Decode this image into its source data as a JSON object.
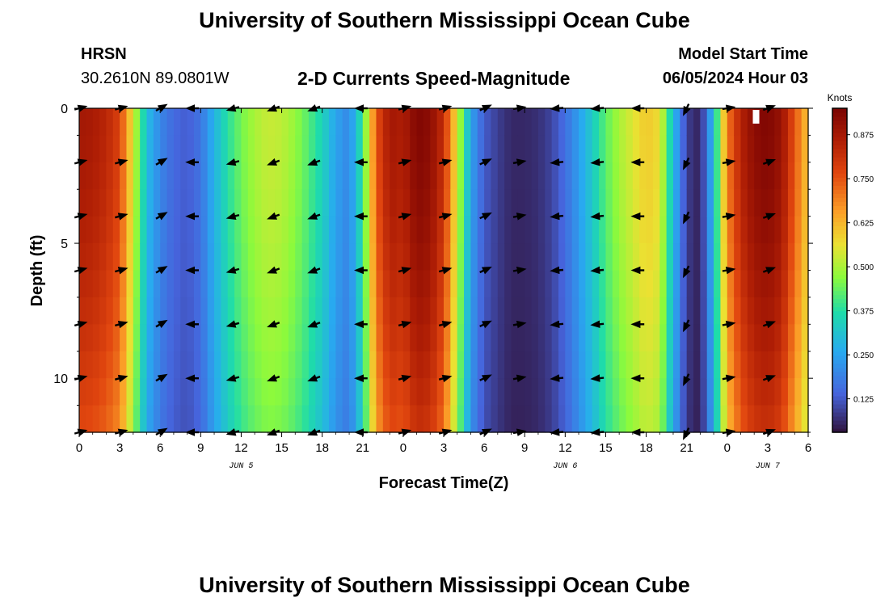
{
  "header": {
    "title": "University of Southern Mississippi Ocean Cube",
    "station": "HRSN",
    "coords": "30.2610N  89.0801W",
    "product": "2-D Currents Speed-Magnitude",
    "model_start_label": "Model Start Time",
    "model_start_value": "06/05/2024 Hour 03"
  },
  "footer": {
    "title": "University of Southern Mississippi Ocean Cube"
  },
  "chart_data": {
    "type": "heatmap",
    "title": "2-D Currents Speed-Magnitude",
    "xlabel": "Forecast Time(Z)",
    "ylabel": "Depth (ft)",
    "x_hours": [
      0,
      54
    ],
    "y_depth_ft": [
      0,
      12
    ],
    "y_ticks": [
      0,
      5,
      10
    ],
    "x_tick_labels": [
      "0",
      "3",
      "6",
      "9",
      "12",
      "15",
      "18",
      "21",
      "0",
      "3",
      "6",
      "9",
      "12",
      "15",
      "18",
      "21",
      "0",
      "3",
      "6"
    ],
    "date_labels": [
      {
        "text": "JUN 5",
        "hour": 12
      },
      {
        "text": "JUN 6",
        "hour": 36
      },
      {
        "text": "JUN 7",
        "hour": 51
      }
    ],
    "colorbar": {
      "label": "Knots",
      "min": 0.03,
      "max": 0.95,
      "ticks": [
        "0.125",
        "0.250",
        "0.375",
        "0.500",
        "0.625",
        "0.750",
        "0.875"
      ],
      "tick_values": [
        0.125,
        0.25,
        0.375,
        0.5,
        0.625,
        0.75,
        0.875
      ]
    },
    "speed_profile_hours": [
      0,
      1,
      2,
      3,
      4,
      5,
      6,
      7,
      8,
      9,
      10,
      11,
      12,
      13,
      14,
      15,
      16,
      17,
      18,
      19,
      20,
      21,
      22,
      23,
      24,
      25,
      26,
      27,
      28,
      29,
      30,
      31,
      32,
      33,
      34,
      35,
      36,
      37,
      38,
      39,
      40,
      41,
      42,
      43,
      44,
      45,
      46,
      47,
      48,
      49,
      50,
      51,
      52,
      53,
      54
    ],
    "speed_profile_knots": [
      0.88,
      0.87,
      0.84,
      0.78,
      0.55,
      0.3,
      0.2,
      0.15,
      0.13,
      0.17,
      0.28,
      0.38,
      0.45,
      0.5,
      0.53,
      0.52,
      0.48,
      0.42,
      0.35,
      0.25,
      0.2,
      0.4,
      0.75,
      0.88,
      0.86,
      0.94,
      0.92,
      0.82,
      0.55,
      0.25,
      0.13,
      0.09,
      0.06,
      0.06,
      0.07,
      0.1,
      0.16,
      0.24,
      0.33,
      0.43,
      0.5,
      0.55,
      0.6,
      0.57,
      0.3,
      0.09,
      0.05,
      0.3,
      0.7,
      0.85,
      0.92,
      0.94,
      0.9,
      0.75,
      0.6
    ],
    "vector_rows_ft": [
      0,
      2,
      4,
      6,
      8,
      10,
      12
    ],
    "vectors": [
      {
        "hour": 0,
        "deg": 15
      },
      {
        "hour": 3,
        "deg": 15
      },
      {
        "hour": 6,
        "deg": 30
      },
      {
        "hour": 8.5,
        "deg": 180
      },
      {
        "hour": 11.5,
        "deg": 195
      },
      {
        "hour": 14.5,
        "deg": 200
      },
      {
        "hour": 17.5,
        "deg": 200
      },
      {
        "hour": 21,
        "deg": 180
      },
      {
        "hour": 24,
        "deg": 15
      },
      {
        "hour": 27,
        "deg": 15
      },
      {
        "hour": 30,
        "deg": 25
      },
      {
        "hour": 32.5,
        "deg": 10
      },
      {
        "hour": 35.5,
        "deg": 185
      },
      {
        "hour": 38.5,
        "deg": 185
      },
      {
        "hour": 41.5,
        "deg": 180
      },
      {
        "hour": 45,
        "deg": 245
      },
      {
        "hour": 48,
        "deg": 10
      },
      {
        "hour": 51,
        "deg": 20
      }
    ]
  }
}
